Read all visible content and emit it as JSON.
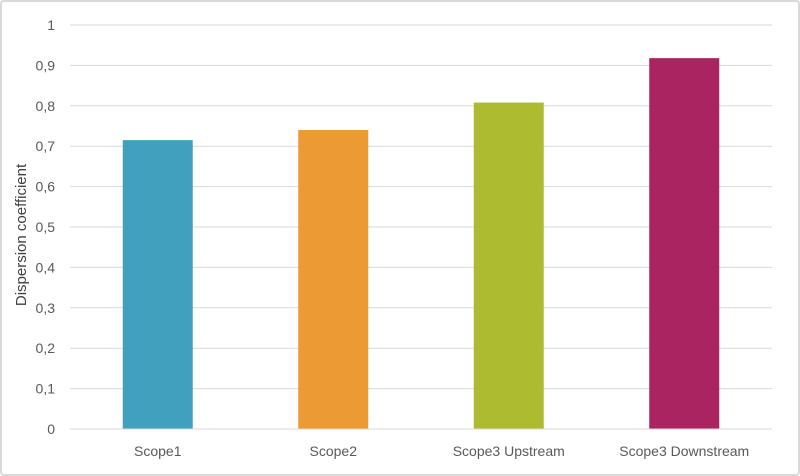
{
  "chart_data": {
    "type": "bar",
    "title": "",
    "xlabel": "",
    "ylabel": "Dispersion coefficient",
    "categories": [
      "Scope1",
      "Scope2",
      "Scope3 Upstream",
      "Scope3 Downstream"
    ],
    "values": [
      0.715,
      0.74,
      0.808,
      0.918
    ],
    "colors": [
      "#41a0bd",
      "#ec9a34",
      "#adbb31",
      "#a92461"
    ],
    "ylim": [
      0,
      1
    ],
    "yticks": [
      0,
      0.1,
      0.2,
      0.3,
      0.4,
      0.5,
      0.6,
      0.7,
      0.8,
      0.9,
      1
    ],
    "ytick_labels": [
      "0",
      "0,1",
      "0,2",
      "0,3",
      "0,4",
      "0,5",
      "0,6",
      "0,7",
      "0,8",
      "0,9",
      "1"
    ],
    "grid": true,
    "legend": "none"
  }
}
